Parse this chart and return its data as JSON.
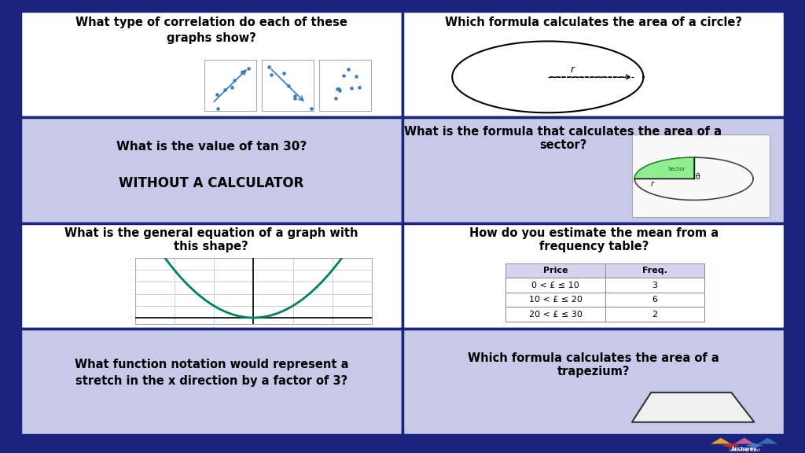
{
  "bg_color": "#1a237e",
  "cell_white_bg": "#ffffff",
  "cell_purple_bg": "#c8c8e8",
  "border_color": "#1a237e",
  "text_color": "#000000",
  "grid_rows": 4,
  "grid_cols": 2,
  "cell_bgs": [
    "#ffffff",
    "#ffffff",
    "#c8c8e8",
    "#c8c8e8",
    "#ffffff",
    "#ffffff",
    "#c8c8e8",
    "#c8c8e8"
  ],
  "texts": [
    "What type of correlation do each of these\ngraphs show?",
    "Which formula calculates the area of a circle?",
    "What is the value of tan 30?\n\nWITHOUT A CALCULATOR",
    "What is the formula that calculates the area of a\nsector?",
    "What is the general equation of a graph with\nthis shape?",
    "How do you estimate the mean from a\nfrequency table?",
    "What function notation would represent a\nstretch in the x direction by a factor of 3?",
    "Which formula calculates the area of a\ntrapezium?"
  ],
  "table_headers": [
    "Price",
    "Freq."
  ],
  "table_rows": [
    [
      "0 < £ ≤ 10",
      "3"
    ],
    [
      "10 < £ ≤ 20",
      "6"
    ],
    [
      "20 < £ ≤ 30",
      "2"
    ]
  ]
}
